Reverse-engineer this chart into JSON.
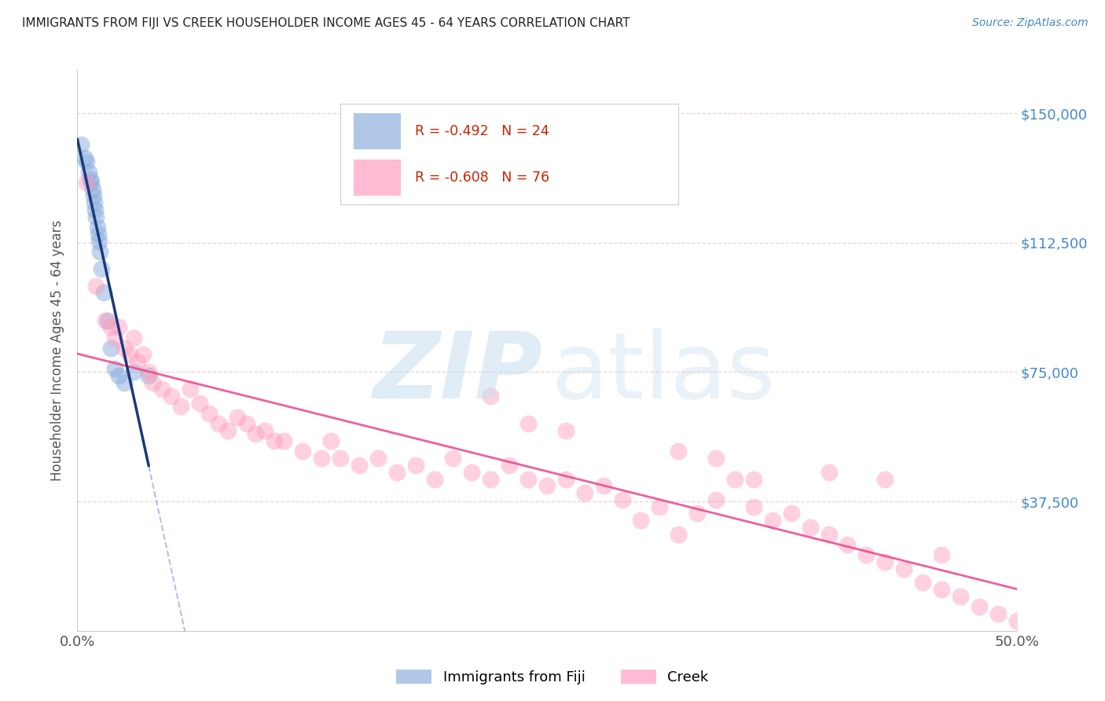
{
  "title": "IMMIGRANTS FROM FIJI VS CREEK HOUSEHOLDER INCOME AGES 45 - 64 YEARS CORRELATION CHART",
  "source": "Source: ZipAtlas.com",
  "ylabel": "Householder Income Ages 45 - 64 years",
  "xlim": [
    0.0,
    50.0
  ],
  "ylim": [
    0,
    162500
  ],
  "yticks": [
    0,
    37500,
    75000,
    112500,
    150000
  ],
  "ytick_labels": [
    "",
    "$37,500",
    "$75,000",
    "$112,500",
    "$150,000"
  ],
  "legend_fiji": "Immigrants from Fiji",
  "legend_creek": "Creek",
  "fiji_R": "-0.492",
  "fiji_N": "24",
  "creek_R": "-0.608",
  "creek_N": "76",
  "fiji_color": "#88aadd",
  "creek_color": "#ff99bb",
  "fiji_line_color": "#1a3a7a",
  "creek_line_color": "#ee4488",
  "fiji_x": [
    0.2,
    0.4,
    0.5,
    0.6,
    0.7,
    0.75,
    0.8,
    0.85,
    0.9,
    0.95,
    1.0,
    1.05,
    1.1,
    1.15,
    1.2,
    1.3,
    1.4,
    1.6,
    1.8,
    2.0,
    2.2,
    2.5,
    3.0,
    3.8
  ],
  "fiji_y": [
    141000,
    137000,
    136000,
    133000,
    131000,
    130000,
    128000,
    126000,
    124000,
    122000,
    120000,
    117000,
    115000,
    113000,
    110000,
    105000,
    98000,
    90000,
    82000,
    76000,
    74000,
    72000,
    75000,
    74000
  ],
  "creek_x": [
    0.5,
    1.0,
    1.5,
    1.8,
    2.0,
    2.2,
    2.5,
    2.8,
    3.0,
    3.2,
    3.5,
    3.8,
    4.0,
    4.5,
    5.0,
    5.5,
    6.0,
    6.5,
    7.0,
    7.5,
    8.0,
    8.5,
    9.0,
    9.5,
    10.0,
    10.5,
    11.0,
    12.0,
    13.0,
    13.5,
    14.0,
    15.0,
    16.0,
    17.0,
    18.0,
    19.0,
    20.0,
    21.0,
    22.0,
    23.0,
    24.0,
    25.0,
    26.0,
    27.0,
    28.0,
    29.0,
    30.0,
    31.0,
    32.0,
    33.0,
    34.0,
    35.0,
    36.0,
    37.0,
    38.0,
    39.0,
    40.0,
    41.0,
    42.0,
    43.0,
    44.0,
    45.0,
    46.0,
    47.0,
    48.0,
    49.0,
    50.0,
    22.0,
    24.0,
    26.0,
    32.0,
    34.0,
    36.0,
    40.0,
    43.0,
    46.0
  ],
  "creek_y": [
    130000,
    100000,
    90000,
    88000,
    85000,
    88000,
    82000,
    80000,
    85000,
    78000,
    80000,
    75000,
    72000,
    70000,
    68000,
    65000,
    70000,
    66000,
    63000,
    60000,
    58000,
    62000,
    60000,
    57000,
    58000,
    55000,
    55000,
    52000,
    50000,
    55000,
    50000,
    48000,
    50000,
    46000,
    48000,
    44000,
    50000,
    46000,
    44000,
    48000,
    44000,
    42000,
    44000,
    40000,
    42000,
    38000,
    32000,
    36000,
    28000,
    34000,
    38000,
    44000,
    36000,
    32000,
    34000,
    30000,
    28000,
    25000,
    22000,
    20000,
    18000,
    14000,
    12000,
    10000,
    7000,
    5000,
    3000,
    68000,
    60000,
    58000,
    52000,
    50000,
    44000,
    46000,
    44000,
    22000
  ],
  "grid_color": "#e8d0dc",
  "spine_color": "#cccccc"
}
